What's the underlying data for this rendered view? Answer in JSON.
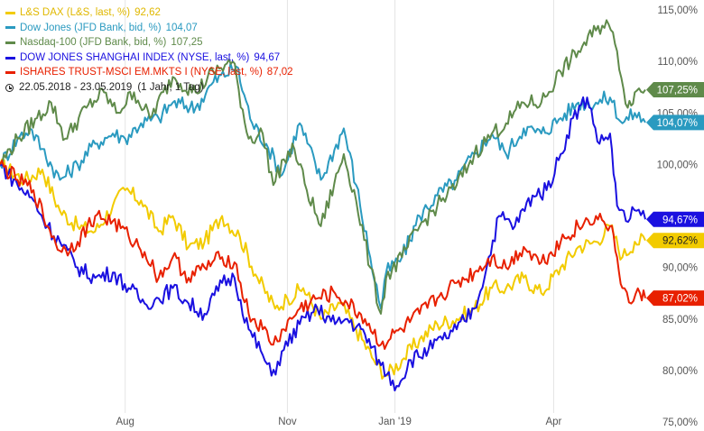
{
  "legend": {
    "items": [
      {
        "name": "L&S DAX (L&S, last, %)",
        "value": "92,62",
        "color": "#f2cb00",
        "text_color": "#e0b800"
      },
      {
        "name": "Dow Jones (JFD Bank, bid, %)",
        "value": "104,07",
        "color": "#2a9ac0",
        "text_color": "#2a9ac0"
      },
      {
        "name": "Nasdaq-100 (JFD Bank, bid, %)",
        "value": "107,25",
        "color": "#5f8a4a",
        "text_color": "#5f8a4a"
      },
      {
        "name": "DOW JONES SHANGHAI INDEX (NYSE, last, %)",
        "value": "94,67",
        "color": "#1a10e0",
        "text_color": "#1a10e0"
      },
      {
        "name": "ISHARES TRUST-MSCI EM.MKTS I (NYSE, last, %)",
        "value": "87,02",
        "color": "#e82000",
        "text_color": "#e82000"
      }
    ],
    "period": "22.05.2018 - 23.05.2019",
    "period_note": "(1 Jahr, 1 Tag)",
    "period_icon": "clock-icon"
  },
  "chart_data": {
    "type": "line",
    "x_start": "2018-05-22",
    "x_end": "2019-05-23",
    "x_ticks": [
      {
        "date": "2018-08-01",
        "label": "Aug"
      },
      {
        "date": "2018-11-01",
        "label": "Nov"
      },
      {
        "date": "2019-01-01",
        "label": "Jan '19"
      },
      {
        "date": "2019-04-01",
        "label": "Apr"
      }
    ],
    "ylim": [
      75,
      115
    ],
    "y_ticks": [
      {
        "value": 75,
        "label": "75,00%"
      },
      {
        "value": 80,
        "label": "80,00%"
      },
      {
        "value": 85,
        "label": "85,00%"
      },
      {
        "value": 90,
        "label": "90,00%"
      },
      {
        "value": 95,
        "label": "95,00%"
      },
      {
        "value": 100,
        "label": "100,00%"
      },
      {
        "value": 105,
        "label": "105,00%"
      },
      {
        "value": 110,
        "label": "110,00%"
      },
      {
        "value": 115,
        "label": "115,00%"
      }
    ],
    "grid": "vertical",
    "legend_position": "top-left",
    "series": [
      {
        "name": "L&S DAX (L&S, last, %)",
        "color": "#f2cb00",
        "last_label": "92,62%",
        "last_value": 92.62,
        "points": [
          [
            "2018-05-22",
            100
          ],
          [
            "2018-06-05",
            98.5
          ],
          [
            "2018-06-15",
            99.5
          ],
          [
            "2018-06-25",
            95.5
          ],
          [
            "2018-07-05",
            94
          ],
          [
            "2018-07-15",
            93.5
          ],
          [
            "2018-07-25",
            96
          ],
          [
            "2018-08-01",
            97.5
          ],
          [
            "2018-08-10",
            96.5
          ],
          [
            "2018-08-20",
            93.5
          ],
          [
            "2018-08-28",
            95
          ],
          [
            "2018-09-06",
            92
          ],
          [
            "2018-09-15",
            92.5
          ],
          [
            "2018-09-25",
            95
          ],
          [
            "2018-10-05",
            93
          ],
          [
            "2018-10-15",
            89
          ],
          [
            "2018-10-25",
            86
          ],
          [
            "2018-11-01",
            87
          ],
          [
            "2018-11-10",
            88
          ],
          [
            "2018-11-20",
            85
          ],
          [
            "2018-12-01",
            86.5
          ],
          [
            "2018-12-10",
            84
          ],
          [
            "2018-12-20",
            81
          ],
          [
            "2018-12-27",
            79.5
          ],
          [
            "2019-01-05",
            81
          ],
          [
            "2019-01-15",
            83
          ],
          [
            "2019-01-25",
            84.5
          ],
          [
            "2019-02-05",
            85
          ],
          [
            "2019-02-15",
            86
          ],
          [
            "2019-02-25",
            88
          ],
          [
            "2019-03-05",
            88
          ],
          [
            "2019-03-15",
            89
          ],
          [
            "2019-03-25",
            87.5
          ],
          [
            "2019-04-05",
            90
          ],
          [
            "2019-04-15",
            92
          ],
          [
            "2019-04-25",
            92.5
          ],
          [
            "2019-05-03",
            94
          ],
          [
            "2019-05-10",
            91
          ],
          [
            "2019-05-17",
            92.5
          ],
          [
            "2019-05-23",
            92.62
          ]
        ]
      },
      {
        "name": "Dow Jones (JFD Bank, bid, %)",
        "color": "#2a9ac0",
        "last_label": "104,07%",
        "last_value": 104.07,
        "points": [
          [
            "2018-05-22",
            100
          ],
          [
            "2018-06-01",
            102.5
          ],
          [
            "2018-06-08",
            103.5
          ],
          [
            "2018-06-15",
            101.5
          ],
          [
            "2018-06-25",
            98.5
          ],
          [
            "2018-07-05",
            100
          ],
          [
            "2018-07-15",
            102
          ],
          [
            "2018-07-25",
            103
          ],
          [
            "2018-08-01",
            102.5
          ],
          [
            "2018-08-10",
            104
          ],
          [
            "2018-08-20",
            104.5
          ],
          [
            "2018-08-28",
            106
          ],
          [
            "2018-09-10",
            105.5
          ],
          [
            "2018-09-20",
            108
          ],
          [
            "2018-10-03",
            109.5
          ],
          [
            "2018-10-12",
            104
          ],
          [
            "2018-10-20",
            102
          ],
          [
            "2018-10-29",
            99
          ],
          [
            "2018-11-08",
            104
          ],
          [
            "2018-11-20",
            98.5
          ],
          [
            "2018-12-03",
            103.5
          ],
          [
            "2018-12-10",
            98
          ],
          [
            "2018-12-18",
            91
          ],
          [
            "2018-12-24",
            86
          ],
          [
            "2018-12-27",
            89.5
          ],
          [
            "2019-01-05",
            91
          ],
          [
            "2019-01-15",
            95
          ],
          [
            "2019-01-25",
            97
          ],
          [
            "2019-02-05",
            98.5
          ],
          [
            "2019-02-15",
            101
          ],
          [
            "2019-02-25",
            103
          ],
          [
            "2019-03-05",
            101
          ],
          [
            "2019-03-15",
            103.5
          ],
          [
            "2019-03-25",
            103
          ],
          [
            "2019-04-05",
            104.5
          ],
          [
            "2019-04-15",
            106
          ],
          [
            "2019-04-25",
            106
          ],
          [
            "2019-05-03",
            106.5
          ],
          [
            "2019-05-10",
            104
          ],
          [
            "2019-05-17",
            105
          ],
          [
            "2019-05-23",
            104.07
          ]
        ]
      },
      {
        "name": "Nasdaq-100 (JFD Bank, bid, %)",
        "color": "#5f8a4a",
        "last_label": "107,25%",
        "last_value": 107.25,
        "points": [
          [
            "2018-05-22",
            100
          ],
          [
            "2018-06-01",
            102.5
          ],
          [
            "2018-06-12",
            104.5
          ],
          [
            "2018-06-20",
            106
          ],
          [
            "2018-06-28",
            102.5
          ],
          [
            "2018-07-10",
            105.5
          ],
          [
            "2018-07-20",
            107
          ],
          [
            "2018-07-27",
            105
          ],
          [
            "2018-08-06",
            107
          ],
          [
            "2018-08-15",
            104.5
          ],
          [
            "2018-08-28",
            108.5
          ],
          [
            "2018-09-10",
            107
          ],
          [
            "2018-09-20",
            109
          ],
          [
            "2018-10-01",
            110
          ],
          [
            "2018-10-10",
            102.5
          ],
          [
            "2018-10-18",
            103
          ],
          [
            "2018-10-24",
            98
          ],
          [
            "2018-10-30",
            100.5
          ],
          [
            "2018-11-05",
            101.5
          ],
          [
            "2018-11-12",
            97.5
          ],
          [
            "2018-11-20",
            94
          ],
          [
            "2018-12-03",
            101
          ],
          [
            "2018-12-10",
            96.5
          ],
          [
            "2018-12-18",
            90
          ],
          [
            "2018-12-24",
            85.5
          ],
          [
            "2018-12-27",
            89
          ],
          [
            "2019-01-05",
            91
          ],
          [
            "2019-01-15",
            94
          ],
          [
            "2019-01-25",
            96
          ],
          [
            "2019-02-05",
            98
          ],
          [
            "2019-02-15",
            101
          ],
          [
            "2019-02-25",
            103
          ],
          [
            "2019-03-05",
            104
          ],
          [
            "2019-03-15",
            106
          ],
          [
            "2019-03-25",
            106
          ],
          [
            "2019-04-05",
            109
          ],
          [
            "2019-04-15",
            111
          ],
          [
            "2019-04-25",
            113
          ],
          [
            "2019-05-01",
            114
          ],
          [
            "2019-05-07",
            111
          ],
          [
            "2019-05-13",
            105.5
          ],
          [
            "2019-05-17",
            107
          ],
          [
            "2019-05-23",
            107.25
          ]
        ]
      },
      {
        "name": "DOW JONES SHANGHAI INDEX (NYSE, last, %)",
        "color": "#1a10e0",
        "last_label": "94,67%",
        "last_value": 94.67,
        "points": [
          [
            "2018-05-22",
            100
          ],
          [
            "2018-06-01",
            98
          ],
          [
            "2018-06-10",
            96.5
          ],
          [
            "2018-06-18",
            94
          ],
          [
            "2018-06-25",
            92.5
          ],
          [
            "2018-07-05",
            90
          ],
          [
            "2018-07-15",
            89
          ],
          [
            "2018-07-25",
            89.5
          ],
          [
            "2018-08-03",
            88
          ],
          [
            "2018-08-12",
            86.5
          ],
          [
            "2018-08-20",
            87
          ],
          [
            "2018-08-28",
            88
          ],
          [
            "2018-09-06",
            86.5
          ],
          [
            "2018-09-15",
            85.5
          ],
          [
            "2018-09-25",
            88.5
          ],
          [
            "2018-10-02",
            89
          ],
          [
            "2018-10-10",
            84
          ],
          [
            "2018-10-18",
            81.5
          ],
          [
            "2018-10-23",
            79.5
          ],
          [
            "2018-10-30",
            82
          ],
          [
            "2018-11-08",
            84.5
          ],
          [
            "2018-11-18",
            86
          ],
          [
            "2018-11-28",
            84.5
          ],
          [
            "2018-12-05",
            85
          ],
          [
            "2018-12-15",
            83.5
          ],
          [
            "2018-12-24",
            80.5
          ],
          [
            "2019-01-02",
            78.5
          ],
          [
            "2019-01-10",
            81
          ],
          [
            "2019-01-20",
            82
          ],
          [
            "2019-01-28",
            83
          ],
          [
            "2019-02-05",
            84
          ],
          [
            "2019-02-15",
            86
          ],
          [
            "2019-02-22",
            90
          ],
          [
            "2019-03-01",
            95
          ],
          [
            "2019-03-10",
            94
          ],
          [
            "2019-03-20",
            97
          ],
          [
            "2019-03-28",
            97.5
          ],
          [
            "2019-04-05",
            101
          ],
          [
            "2019-04-12",
            104.5
          ],
          [
            "2019-04-20",
            106.5
          ],
          [
            "2019-04-27",
            102
          ],
          [
            "2019-05-03",
            103
          ],
          [
            "2019-05-07",
            96
          ],
          [
            "2019-05-12",
            94.5
          ],
          [
            "2019-05-18",
            95.5
          ],
          [
            "2019-05-23",
            94.67
          ]
        ]
      },
      {
        "name": "ISHARES TRUST-MSCI EM.MKTS I (NYSE, last, %)",
        "color": "#e82000",
        "last_label": "87,02%",
        "last_value": 87.02,
        "points": [
          [
            "2018-05-22",
            100
          ],
          [
            "2018-06-01",
            98.5
          ],
          [
            "2018-06-10",
            97.5
          ],
          [
            "2018-06-18",
            94
          ],
          [
            "2018-06-26",
            91.5
          ],
          [
            "2018-07-05",
            92.5
          ],
          [
            "2018-07-15",
            95
          ],
          [
            "2018-07-25",
            94.5
          ],
          [
            "2018-08-03",
            93
          ],
          [
            "2018-08-12",
            91.5
          ],
          [
            "2018-08-20",
            89
          ],
          [
            "2018-08-28",
            91
          ],
          [
            "2018-09-06",
            89
          ],
          [
            "2018-09-15",
            90
          ],
          [
            "2018-09-25",
            91
          ],
          [
            "2018-10-02",
            90.5
          ],
          [
            "2018-10-10",
            85.5
          ],
          [
            "2018-10-18",
            84
          ],
          [
            "2018-10-24",
            82.5
          ],
          [
            "2018-10-30",
            84
          ],
          [
            "2018-11-08",
            86
          ],
          [
            "2018-11-18",
            87
          ],
          [
            "2018-11-28",
            87.5
          ],
          [
            "2018-12-05",
            86.5
          ],
          [
            "2018-12-15",
            85
          ],
          [
            "2018-12-24",
            82.5
          ],
          [
            "2019-01-05",
            84
          ],
          [
            "2019-01-15",
            85.5
          ],
          [
            "2019-01-25",
            87
          ],
          [
            "2019-02-05",
            88.5
          ],
          [
            "2019-02-15",
            89.5
          ],
          [
            "2019-02-25",
            91
          ],
          [
            "2019-03-05",
            90
          ],
          [
            "2019-03-15",
            92
          ],
          [
            "2019-03-25",
            90.5
          ],
          [
            "2019-04-05",
            92.5
          ],
          [
            "2019-04-15",
            94
          ],
          [
            "2019-04-25",
            95
          ],
          [
            "2019-05-03",
            94
          ],
          [
            "2019-05-07",
            91
          ],
          [
            "2019-05-10",
            88
          ],
          [
            "2019-05-15",
            86.5
          ],
          [
            "2019-05-20",
            87.5
          ],
          [
            "2019-05-23",
            87.02
          ]
        ]
      }
    ]
  }
}
